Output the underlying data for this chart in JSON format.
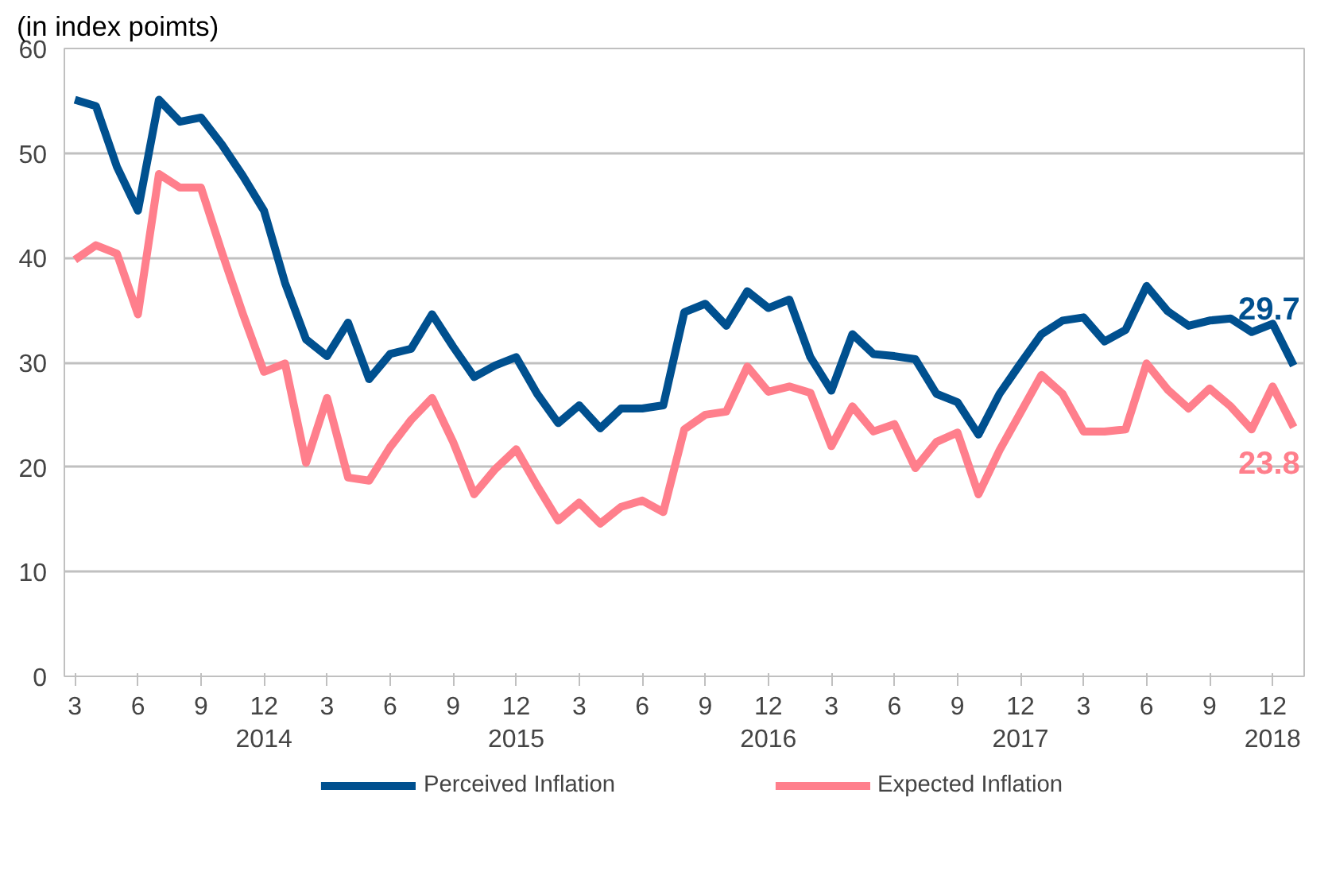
{
  "chart_data": {
    "type": "line",
    "ylabel": "(in index poimts)",
    "categories": [
      "3",
      null,
      null,
      "6",
      null,
      null,
      "9",
      null,
      null,
      "12\n2014",
      null,
      null,
      "3",
      null,
      null,
      "6",
      null,
      null,
      "9",
      null,
      null,
      "12\n2015",
      null,
      null,
      "3",
      null,
      null,
      "6",
      null,
      null,
      "9",
      null,
      null,
      "12\n2016",
      null,
      null,
      "3",
      null,
      null,
      "6",
      null,
      null,
      "9",
      null,
      null,
      "12\n2017",
      null,
      null,
      "3",
      null,
      null,
      "6",
      null,
      null,
      "9",
      null,
      null,
      "12\n2018",
      null
    ],
    "series": [
      {
        "name": "Perceived Inflation",
        "color": "#00508f",
        "values": [
          55.1,
          54.5,
          48.7,
          44.5,
          55.1,
          53.0,
          53.4,
          50.8,
          47.8,
          44.5,
          37.6,
          32.2,
          30.6,
          33.8,
          28.4,
          30.8,
          31.3,
          34.6,
          31.5,
          28.6,
          29.7,
          30.5,
          27.0,
          24.2,
          25.9,
          23.7,
          25.6,
          25.6,
          25.9,
          34.8,
          35.6,
          33.5,
          36.8,
          35.2,
          36.0,
          30.5,
          27.3,
          32.7,
          30.8,
          30.6,
          30.3,
          27.0,
          26.2,
          23.1,
          27.0,
          29.9,
          32.7,
          34.0,
          34.3,
          32.0,
          33.1,
          37.3,
          34.9,
          33.5,
          34.0,
          34.2,
          32.9,
          33.7,
          29.7
        ],
        "value_labels": [
          null,
          null,
          null,
          null,
          null,
          null,
          null,
          null,
          null,
          null,
          null,
          null,
          null,
          null,
          null,
          null,
          null,
          null,
          null,
          null,
          null,
          null,
          null,
          null,
          null,
          null,
          null,
          null,
          null,
          null,
          null,
          null,
          null,
          null,
          null,
          null,
          null,
          null,
          null,
          null,
          null,
          null,
          null,
          null,
          null,
          null,
          null,
          null,
          null,
          null,
          null,
          null,
          null,
          null,
          null,
          null,
          null,
          null,
          "29.7"
        ]
      },
      {
        "name": "Expected Inflation",
        "color": "#ff7f8c",
        "values": [
          39.8,
          41.2,
          40.4,
          34.6,
          48.0,
          46.7,
          46.7,
          40.5,
          34.6,
          29.1,
          29.9,
          20.4,
          26.6,
          19.0,
          18.7,
          21.9,
          24.5,
          26.6,
          22.4,
          17.4,
          19.8,
          21.7,
          18.2,
          14.9,
          16.6,
          14.6,
          16.2,
          16.8,
          15.7,
          23.6,
          25.0,
          25.3,
          29.6,
          27.2,
          27.7,
          27.1,
          22.0,
          25.8,
          23.4,
          24.1,
          19.9,
          22.4,
          23.3,
          17.4,
          21.6,
          25.2,
          28.8,
          27.0,
          23.4,
          23.4,
          23.6,
          29.9,
          27.4,
          25.6,
          27.5,
          25.8,
          23.6,
          27.7,
          23.8
        ],
        "value_labels": [
          null,
          null,
          null,
          null,
          null,
          null,
          null,
          null,
          null,
          null,
          null,
          null,
          null,
          null,
          null,
          null,
          null,
          null,
          null,
          null,
          null,
          null,
          null,
          null,
          null,
          null,
          null,
          null,
          null,
          null,
          null,
          null,
          null,
          null,
          null,
          null,
          null,
          null,
          null,
          null,
          null,
          null,
          null,
          null,
          null,
          null,
          null,
          null,
          null,
          null,
          null,
          null,
          null,
          null,
          null,
          null,
          null,
          null,
          "23.8"
        ]
      }
    ],
    "ylim": [
      0,
      60
    ],
    "yticks": [
      0,
      10,
      20,
      30,
      40,
      50,
      60
    ],
    "grid": "y",
    "legend": "bottom",
    "marker": "none",
    "line_style": "solid"
  }
}
